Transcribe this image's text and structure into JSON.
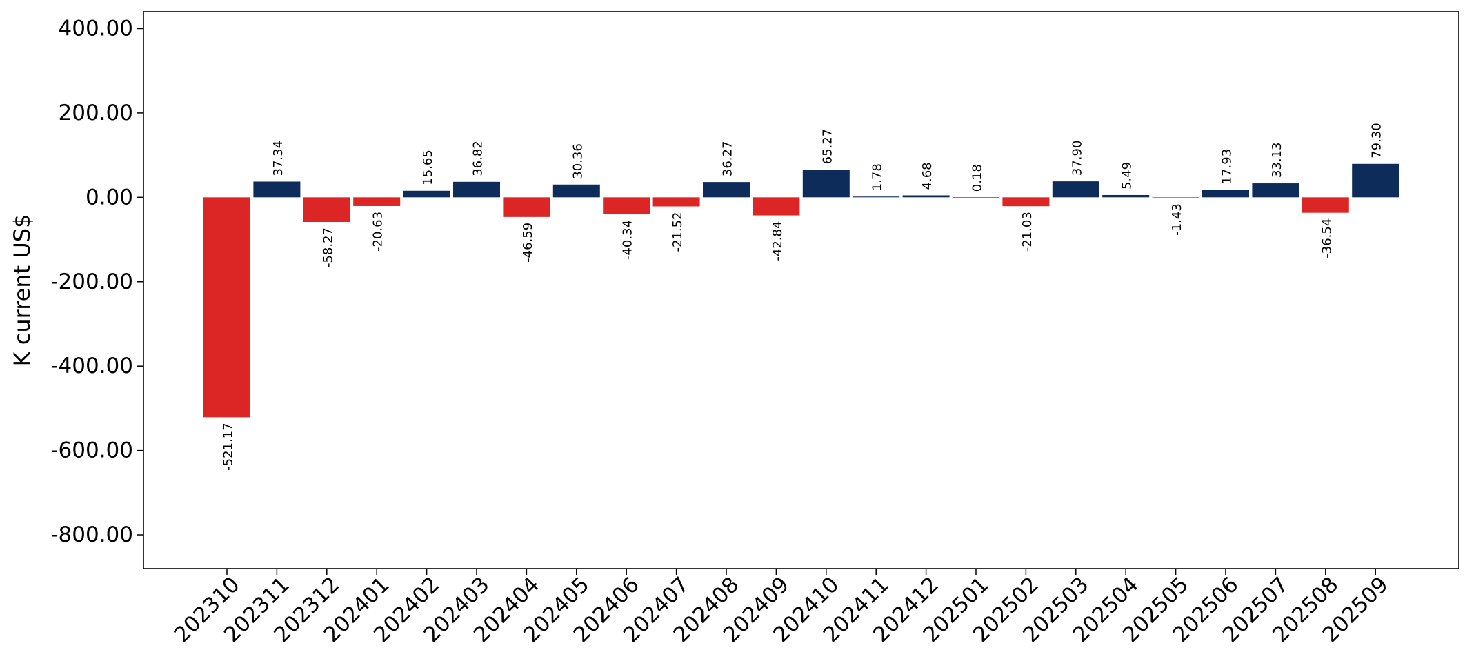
{
  "chart_data": {
    "type": "bar",
    "title": "",
    "xlabel": "",
    "ylabel": "K current US$",
    "ylim": [
      -880,
      440
    ],
    "yticks": [
      400,
      200,
      0,
      -200,
      -400,
      -600,
      -800
    ],
    "ytick_format_decimals": 2,
    "grid": false,
    "legend": "none",
    "colors": {
      "positive": "#0d2c5a",
      "negative": "#dc2626"
    },
    "categories": [
      "202310",
      "202311",
      "202312",
      "202401",
      "202402",
      "202403",
      "202404",
      "202405",
      "202406",
      "202407",
      "202408",
      "202409",
      "202410",
      "202411",
      "202412",
      "202501",
      "202502",
      "202503",
      "202504",
      "202505",
      "202506",
      "202507",
      "202508",
      "202509"
    ],
    "values": [
      -521.17,
      37.34,
      -58.27,
      -20.63,
      15.65,
      36.82,
      -46.59,
      30.36,
      -40.34,
      -21.52,
      36.27,
      -42.84,
      65.27,
      1.78,
      4.68,
      0.18,
      -21.03,
      37.9,
      5.49,
      -1.43,
      17.93,
      33.13,
      -36.54,
      79.3
    ],
    "value_labels": [
      "-521.17",
      "37.34",
      "-58.27",
      "-20.63",
      "15.65",
      "36.82",
      "-46.59",
      "30.36",
      "-40.34",
      "-21.52",
      "36.27",
      "-42.84",
      "65.27",
      "1.78",
      "4.68",
      "0.18",
      "-21.03",
      "37.90",
      "5.49",
      "-1.43",
      "17.93",
      "33.13",
      "-36.54",
      "79.30"
    ]
  }
}
